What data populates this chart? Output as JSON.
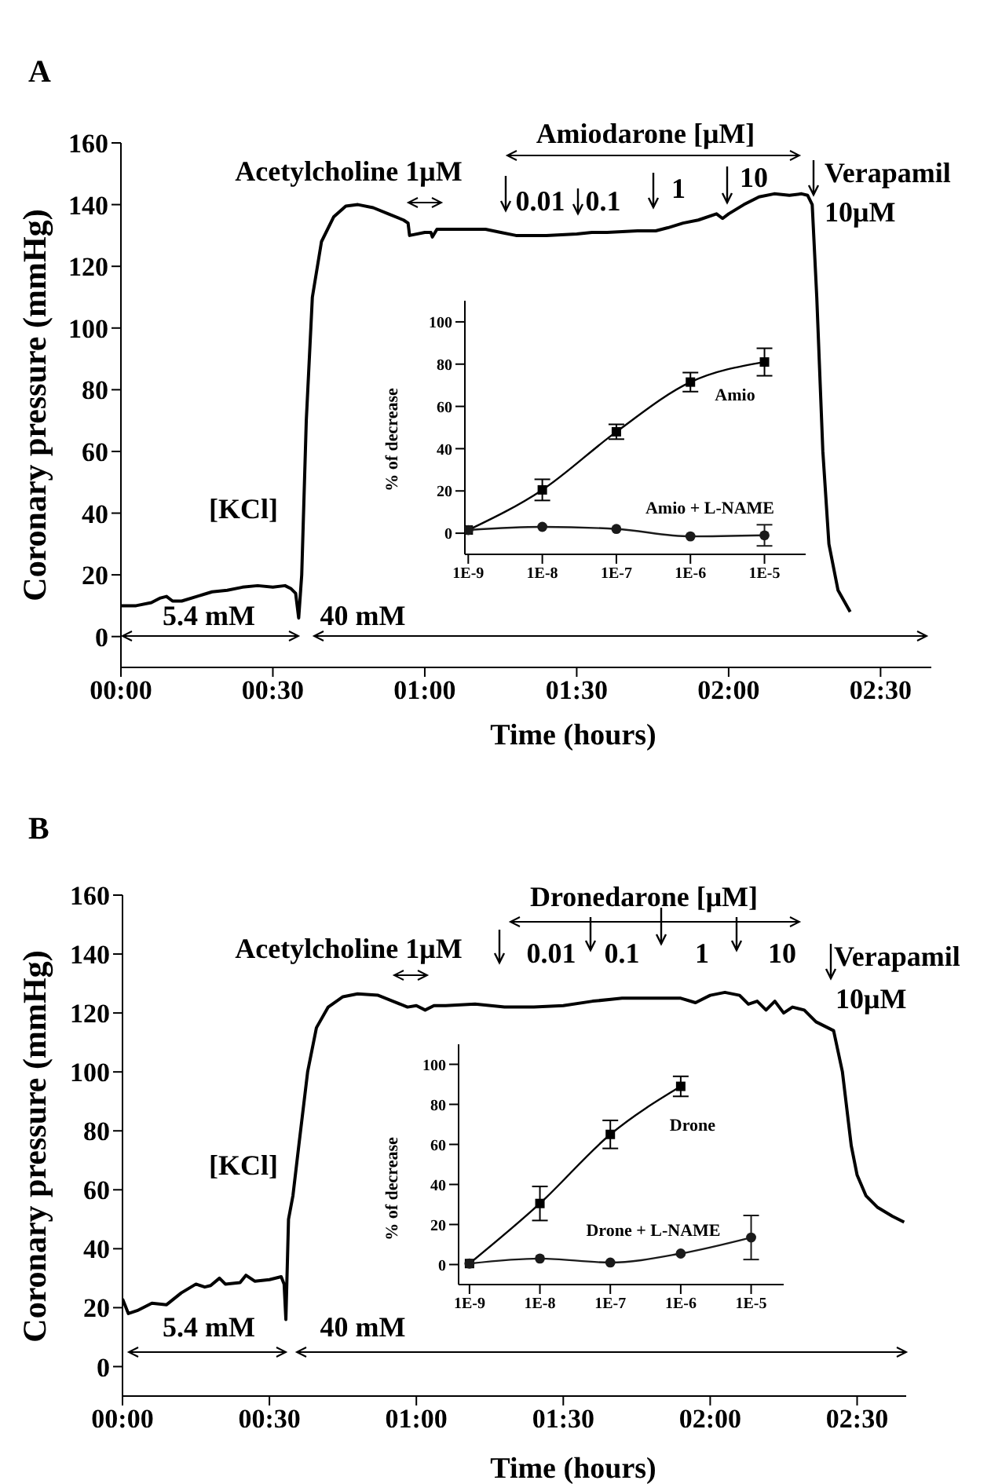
{
  "chart_data": [
    {
      "type": "line",
      "title": "A",
      "xlabel": "Time (hours)",
      "ylabel": "Coronary pressure (mmHg)",
      "color": "#000000",
      "annotations": [
        "Acetylcholine 1μM",
        "Amiodarone [μM]",
        "0.01",
        "0.1",
        "1",
        "10",
        "Verapamil",
        "10μM",
        "[KCl]",
        "5.4 mM",
        "40 mM"
      ],
      "xlim": [
        0,
        2.667
      ],
      "xticks": [
        {
          "value": 0,
          "label": "00:00"
        },
        {
          "value": 0.5,
          "label": "00:30"
        },
        {
          "value": 1,
          "label": "01:00"
        },
        {
          "value": 1.5,
          "label": "01:30"
        },
        {
          "value": 2,
          "label": "02:00"
        },
        {
          "value": 2.5,
          "label": "02:30"
        }
      ],
      "ylim": [
        -10,
        160
      ],
      "yticks": [
        0,
        20,
        40,
        60,
        80,
        100,
        120,
        140,
        160
      ],
      "x": [
        0,
        0.05,
        0.1,
        0.13,
        0.15,
        0.17,
        0.2,
        0.25,
        0.3,
        0.35,
        0.4,
        0.45,
        0.5,
        0.54,
        0.56,
        0.575,
        0.585,
        0.595,
        0.61,
        0.63,
        0.66,
        0.7,
        0.74,
        0.78,
        0.83,
        0.88,
        0.93,
        0.945,
        0.95,
        1.0,
        1.02,
        1.025,
        1.04,
        1.1,
        1.2,
        1.25,
        1.3,
        1.4,
        1.5,
        1.55,
        1.6,
        1.7,
        1.76,
        1.8,
        1.85,
        1.9,
        1.96,
        1.98,
        2.0,
        2.05,
        2.1,
        2.15,
        2.2,
        2.24,
        2.26,
        2.275,
        2.29,
        2.31,
        2.33,
        2.36,
        2.4
      ],
      "values": [
        10,
        10,
        11,
        12.5,
        13,
        11.5,
        11.5,
        13,
        14.5,
        15,
        16,
        16.5,
        16,
        16.5,
        15.5,
        14,
        6,
        20,
        70,
        110,
        128,
        136,
        139.5,
        140,
        139,
        137,
        135,
        134,
        130,
        131,
        131,
        129.5,
        132,
        132,
        132,
        131,
        130,
        130,
        130.5,
        131,
        131,
        131.5,
        131.5,
        132.5,
        134,
        135,
        137,
        135.5,
        137,
        140,
        142.5,
        143.5,
        143,
        143.5,
        143,
        140,
        110,
        60,
        30,
        15,
        8
      ]
    },
    {
      "type": "line",
      "ylabel": "% of decrease",
      "log": "x",
      "xlim": [
        9e-10,
        3.6e-05
      ],
      "xticks": [
        {
          "value": 1e-09,
          "label": "1E-9"
        },
        {
          "value": 1e-08,
          "label": "1E-8"
        },
        {
          "value": 1e-07,
          "label": "1E-7"
        },
        {
          "value": 1e-06,
          "label": "1E-6"
        },
        {
          "value": 1e-05,
          "label": "1E-5"
        }
      ],
      "ylim": [
        -10,
        110
      ],
      "yticks": [
        0,
        20,
        40,
        60,
        80,
        100
      ],
      "x": [
        1e-09,
        1e-08,
        1e-07,
        1e-06,
        1e-05
      ],
      "series": [
        {
          "name": "Amio",
          "color": "#000000",
          "marker": "square",
          "values": [
            1.5,
            20.5,
            48,
            71.5,
            81
          ],
          "errors": [
            null,
            5,
            3.5,
            4.5,
            6.5
          ]
        },
        {
          "name": "Amio + L-NAME",
          "color": "#1a1a1a",
          "marker": "circle",
          "values": [
            1.5,
            3,
            2,
            -1.5,
            -1
          ],
          "errors": [
            null,
            null,
            null,
            null,
            5
          ]
        }
      ]
    },
    {
      "type": "line",
      "title": "B",
      "xlabel": "Time (hours)",
      "ylabel": "Coronary pressure (mmHg)",
      "color": "#000000",
      "annotations": [
        "Acetylcholine 1μM",
        "Dronedarone [μM]",
        "0.01",
        "0.1",
        "1",
        "10",
        "Verapamil",
        "10μM",
        "[KCl]",
        "5.4 mM",
        "40 mM"
      ],
      "xlim": [
        0,
        2.667
      ],
      "xticks": [
        {
          "value": 0,
          "label": "00:00"
        },
        {
          "value": 0.5,
          "label": "00:30"
        },
        {
          "value": 1,
          "label": "01:00"
        },
        {
          "value": 1.5,
          "label": "01:30"
        },
        {
          "value": 2,
          "label": "02:00"
        },
        {
          "value": 2.5,
          "label": "02:30"
        }
      ],
      "ylim": [
        -10,
        160
      ],
      "yticks": [
        0,
        20,
        40,
        60,
        80,
        100,
        120,
        140,
        160
      ],
      "x": [
        0,
        0.02,
        0.05,
        0.1,
        0.15,
        0.2,
        0.25,
        0.28,
        0.3,
        0.33,
        0.35,
        0.4,
        0.42,
        0.45,
        0.5,
        0.54,
        0.55,
        0.556,
        0.565,
        0.58,
        0.6,
        0.63,
        0.66,
        0.7,
        0.75,
        0.8,
        0.87,
        0.92,
        0.97,
        1.0,
        1.03,
        1.06,
        1.1,
        1.2,
        1.3,
        1.4,
        1.5,
        1.6,
        1.7,
        1.8,
        1.9,
        1.95,
        2.0,
        2.05,
        2.1,
        2.13,
        2.16,
        2.19,
        2.22,
        2.25,
        2.28,
        2.32,
        2.36,
        2.4,
        2.42,
        2.45,
        2.48,
        2.5,
        2.53,
        2.57,
        2.62,
        2.66
      ],
      "values": [
        23,
        18,
        19,
        21.5,
        21,
        25,
        28,
        27,
        27.5,
        30,
        28,
        28.5,
        31,
        29,
        29.5,
        30.5,
        28,
        16,
        50,
        58,
        75,
        100,
        115,
        122,
        125.5,
        126.5,
        126,
        124,
        122,
        122.5,
        121,
        122.5,
        122.5,
        123,
        122,
        122,
        122.5,
        124,
        125,
        125,
        125,
        123.5,
        126,
        127,
        126,
        123,
        124,
        121,
        124,
        120,
        122,
        121,
        117,
        115,
        114,
        100,
        75,
        65,
        58,
        54,
        51,
        49
      ]
    },
    {
      "type": "line",
      "ylabel": "% of decrease",
      "log": "x",
      "xlim": [
        7e-10,
        2.9e-05
      ],
      "xticks": [
        {
          "value": 1e-09,
          "label": "1E-9"
        },
        {
          "value": 1e-08,
          "label": "1E-8"
        },
        {
          "value": 1e-07,
          "label": "1E-7"
        },
        {
          "value": 1e-06,
          "label": "1E-6"
        },
        {
          "value": 1e-05,
          "label": "1E-5"
        }
      ],
      "ylim": [
        -10,
        110
      ],
      "yticks": [
        0,
        20,
        40,
        60,
        80,
        100
      ],
      "x": [
        1e-09,
        1e-08,
        1e-07,
        1e-06,
        1e-05
      ],
      "series": [
        {
          "name": "Drone",
          "color": "#000000",
          "marker": "square",
          "values": [
            0.5,
            30.5,
            65,
            89,
            null
          ],
          "errors": [
            null,
            8.5,
            7,
            5,
            null
          ]
        },
        {
          "name": "Drone + L-NAME",
          "color": "#1a1a1a",
          "marker": "circle",
          "values": [
            0.5,
            3,
            1,
            5.5,
            13.5
          ],
          "errors": [
            null,
            null,
            null,
            null,
            11
          ]
        }
      ]
    }
  ]
}
